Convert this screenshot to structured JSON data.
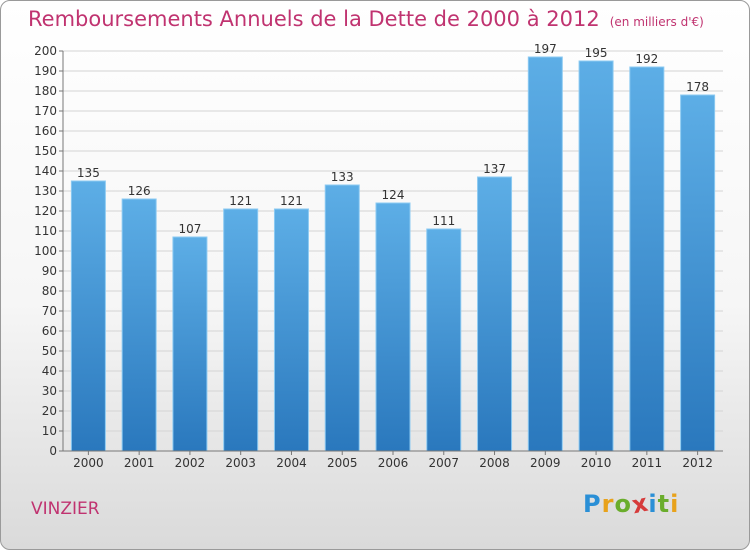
{
  "header": {
    "title": "Remboursements Annuels de la Dette de 2000 à 2012",
    "unit": "(en milliers d'€)"
  },
  "footer": {
    "place": "VINZIER",
    "logo_letters": [
      "P",
      "r",
      "o",
      "x",
      "i",
      "t",
      "i"
    ],
    "logo_colors": [
      "#2a8fd6",
      "#e8a21b",
      "#6aad2c",
      "#d63a3a",
      "#2a8fd6",
      "#6aad2c",
      "#e8a21b"
    ]
  },
  "chart_data": {
    "type": "bar",
    "title": "Remboursements Annuels de la Dette de 2000 à 2012",
    "categories": [
      "2000",
      "2001",
      "2002",
      "2003",
      "2004",
      "2005",
      "2006",
      "2007",
      "2008",
      "2009",
      "2010",
      "2011",
      "2012"
    ],
    "values": [
      135,
      126,
      107,
      121,
      121,
      133,
      124,
      111,
      137,
      197,
      195,
      192,
      178
    ],
    "ylim": [
      0,
      200
    ],
    "yticks": [
      0,
      10,
      20,
      30,
      40,
      50,
      60,
      70,
      80,
      90,
      100,
      110,
      120,
      130,
      140,
      150,
      160,
      170,
      180,
      190,
      200
    ],
    "grid": true,
    "bar_color_top": "#5daee6",
    "bar_color_bottom": "#2a78bd"
  }
}
